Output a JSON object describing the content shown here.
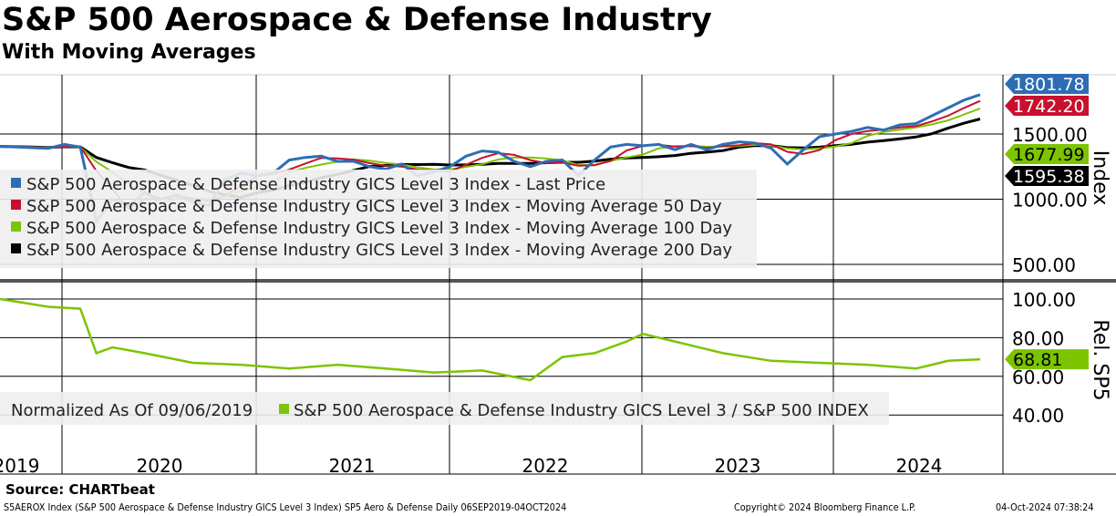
{
  "chart_data": [
    {
      "type": "line",
      "title": "S&P 500 Aerospace & Defense Industry",
      "subtitle": "With Moving Averages",
      "ylabel": "Index",
      "ylim": [
        400,
        1900
      ],
      "y_ticks": [
        "500.00",
        "1000.00",
        "1500.00"
      ],
      "x_tick_labels": [
        "2019",
        "2020",
        "2021",
        "2022",
        "2023",
        "2024"
      ],
      "x_start": "Sep 2019",
      "x_unit": "month",
      "last_price": [
        1405,
        1400,
        1395,
        1390,
        1420,
        1400,
        830,
        1000,
        950,
        1050,
        1000,
        1030,
        980,
        950,
        1150,
        1200,
        1180,
        1200,
        1300,
        1320,
        1330,
        1290,
        1290,
        1250,
        1230,
        1270,
        1180,
        1210,
        1250,
        1330,
        1370,
        1360,
        1290,
        1250,
        1290,
        1300,
        1180,
        1300,
        1400,
        1420,
        1410,
        1420,
        1380,
        1420,
        1380,
        1420,
        1440,
        1430,
        1390,
        1270,
        1380,
        1480,
        1500,
        1520,
        1550,
        1530,
        1570,
        1580,
        1640,
        1700,
        1760,
        1801.78
      ],
      "series": [
        {
          "name": "S&P 500 Aerospace & Defense Industry GICS Level 3 Index - Last Price",
          "color": "#2e6db4",
          "last": "1801.78"
        },
        {
          "name": "S&P 500 Aerospace & Defense Industry GICS Level 3 Index - Moving Average 50 Day",
          "color": "#c8102e",
          "last": "1742.20",
          "window": 2.5
        },
        {
          "name": "S&P 500 Aerospace & Defense Industry GICS Level 3 Index - Moving Average 100 Day",
          "color": "#7dc400",
          "last": "1677.99",
          "window": 5
        },
        {
          "name": "S&P 500 Aerospace & Defense Industry GICS Level 3 Index - Moving Average 200 Day",
          "color": "#000000",
          "last": "1595.38",
          "window": 10
        }
      ]
    },
    {
      "type": "line",
      "ylabel": "Rel. SP5",
      "ylim": [
        35,
        105
      ],
      "y_ticks": [
        "40.00",
        "60.00",
        "80.00",
        "100.00"
      ],
      "legend_prefix": "Normalized As Of 09/06/2019",
      "series": [
        {
          "name": "S&P 500 Aerospace & Defense Industry GICS Level 3 / S&P 500 INDEX",
          "color": "#7dc400",
          "last": "68.81"
        }
      ],
      "keyframes": [
        [
          0,
          100
        ],
        [
          3,
          96
        ],
        [
          5,
          95
        ],
        [
          6,
          72
        ],
        [
          7,
          75
        ],
        [
          9,
          72
        ],
        [
          12,
          67
        ],
        [
          15,
          66
        ],
        [
          18,
          64
        ],
        [
          21,
          66
        ],
        [
          24,
          64
        ],
        [
          27,
          62
        ],
        [
          30,
          63
        ],
        [
          33,
          58
        ],
        [
          35,
          70
        ],
        [
          37,
          72
        ],
        [
          39,
          78
        ],
        [
          40,
          82
        ],
        [
          42,
          78
        ],
        [
          45,
          72
        ],
        [
          48,
          68
        ],
        [
          51,
          67
        ],
        [
          54,
          66
        ],
        [
          57,
          64
        ],
        [
          59,
          68
        ],
        [
          61,
          68.81
        ]
      ]
    }
  ],
  "source": "Source: CHARTbeat",
  "footer": {
    "left": "S5AEROX Index (S&P 500 Aerospace & Defense Industry GICS Level 3 Index) SP5 Aero & Defense  Daily 06SEP2019-04OCT2024",
    "center": "Copyright© 2024 Bloomberg Finance L.P.",
    "right": "04-Oct-2024 07:38:24"
  }
}
